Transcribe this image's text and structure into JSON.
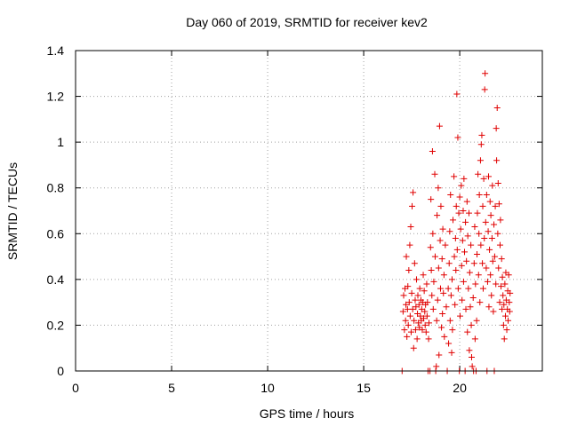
{
  "chart_data": {
    "type": "scatter",
    "title": "Day 060 of 2019, SRMTID for receiver kev2",
    "xlabel": "GPS time / hours",
    "ylabel": "SRMTID / TECUs",
    "xlim": [
      0,
      24.3
    ],
    "ylim": [
      0,
      1.4
    ],
    "xticks": [
      0,
      5,
      10,
      15,
      20
    ],
    "xtick_labels": [
      "0",
      "5",
      "10",
      "15",
      "20"
    ],
    "yticks": [
      0,
      0.2,
      0.4,
      0.6,
      0.8,
      1.0,
      1.2,
      1.4
    ],
    "ytick_labels": [
      "0",
      "0.2",
      "0.4",
      "0.6",
      "0.8",
      "1",
      "1.2",
      "1.4"
    ],
    "grid": true,
    "marker": "+",
    "color": "#e00000",
    "series": [
      {
        "name": "SRMTID",
        "points": [
          [
            17.0,
            0.0
          ],
          [
            17.05,
            0.26
          ],
          [
            17.08,
            0.33
          ],
          [
            17.12,
            0.18
          ],
          [
            17.15,
            0.36
          ],
          [
            17.18,
            0.22
          ],
          [
            17.2,
            0.29
          ],
          [
            17.22,
            0.5
          ],
          [
            17.25,
            0.15
          ],
          [
            17.28,
            0.27
          ],
          [
            17.3,
            0.37
          ],
          [
            17.32,
            0.2
          ],
          [
            17.35,
            0.44
          ],
          [
            17.37,
            0.3
          ],
          [
            17.4,
            0.55
          ],
          [
            17.42,
            0.24
          ],
          [
            17.45,
            0.63
          ],
          [
            17.47,
            0.17
          ],
          [
            17.5,
            0.34
          ],
          [
            17.52,
            0.72
          ],
          [
            17.55,
            0.27
          ],
          [
            17.57,
            0.78
          ],
          [
            17.6,
            0.1
          ],
          [
            17.62,
            0.22
          ],
          [
            17.65,
            0.47
          ],
          [
            17.68,
            0.31
          ],
          [
            17.7,
            0.18
          ],
          [
            17.72,
            0.28
          ],
          [
            17.75,
            0.4
          ],
          [
            17.78,
            0.14
          ],
          [
            17.8,
            0.25
          ],
          [
            17.82,
            0.33
          ],
          [
            17.85,
            0.21
          ],
          [
            17.88,
            0.29
          ],
          [
            17.9,
            0.19
          ],
          [
            17.92,
            0.36
          ],
          [
            17.95,
            0.24
          ],
          [
            17.98,
            0.31
          ],
          [
            18.0,
            0.22
          ],
          [
            18.02,
            0.27
          ],
          [
            18.05,
            0.18
          ],
          [
            18.08,
            0.3
          ],
          [
            18.1,
            0.42
          ],
          [
            18.12,
            0.23
          ],
          [
            18.15,
            0.35
          ],
          [
            18.18,
            0.26
          ],
          [
            18.2,
            0.2
          ],
          [
            18.22,
            0.29
          ],
          [
            18.25,
            0.17
          ],
          [
            18.28,
            0.38
          ],
          [
            18.3,
            0.24
          ],
          [
            18.32,
            0.3
          ],
          [
            18.35,
            0.0
          ],
          [
            18.38,
            0.14
          ],
          [
            18.4,
            0.21
          ],
          [
            18.45,
            0.0
          ],
          [
            18.48,
            0.54
          ],
          [
            18.5,
            0.75
          ],
          [
            18.52,
            0.44
          ],
          [
            18.55,
            0.33
          ],
          [
            18.58,
            0.96
          ],
          [
            18.6,
            0.6
          ],
          [
            18.62,
            0.27
          ],
          [
            18.65,
            0.39
          ],
          [
            18.7,
            0.86
          ],
          [
            18.72,
            0.5
          ],
          [
            18.75,
            0.0
          ],
          [
            18.78,
            0.02
          ],
          [
            18.8,
            0.22
          ],
          [
            18.82,
            0.68
          ],
          [
            18.85,
            0.31
          ],
          [
            18.88,
            0.8
          ],
          [
            18.9,
            0.45
          ],
          [
            18.92,
            0.07
          ],
          [
            18.95,
            1.07
          ],
          [
            18.98,
            0.57
          ],
          [
            19.0,
            0.36
          ],
          [
            19.02,
            0.72
          ],
          [
            19.05,
            0.19
          ],
          [
            19.08,
            0.49
          ],
          [
            19.1,
            0.25
          ],
          [
            19.12,
            0.62
          ],
          [
            19.15,
            0.34
          ],
          [
            19.18,
            0.42
          ],
          [
            19.2,
            0.15
          ],
          [
            19.25,
            0.55
          ],
          [
            19.3,
            0.28
          ],
          [
            19.35,
            0.0
          ],
          [
            19.4,
            0.36
          ],
          [
            19.42,
            0.12
          ],
          [
            19.45,
            0.47
          ],
          [
            19.48,
            0.61
          ],
          [
            19.5,
            0.22
          ],
          [
            19.52,
            0.77
          ],
          [
            19.55,
            0.33
          ],
          [
            19.58,
            0.08
          ],
          [
            19.6,
            0.4
          ],
          [
            19.62,
            0.18
          ],
          [
            19.65,
            0.66
          ],
          [
            19.7,
            0.85
          ],
          [
            19.72,
            0.5
          ],
          [
            19.75,
            0.29
          ],
          [
            19.78,
            0.58
          ],
          [
            19.8,
            0.44
          ],
          [
            19.82,
            0.72
          ],
          [
            19.85,
            1.21
          ],
          [
            19.87,
            0.53
          ],
          [
            19.9,
            1.02
          ],
          [
            19.92,
            0.36
          ],
          [
            19.95,
            0.69
          ],
          [
            19.98,
            0.0
          ],
          [
            20.0,
            0.76
          ],
          [
            20.02,
            0.24
          ],
          [
            20.05,
            0.62
          ],
          [
            20.08,
            0.81
          ],
          [
            20.1,
            0.46
          ],
          [
            20.12,
            0.31
          ],
          [
            20.15,
            0.57
          ],
          [
            20.18,
            0.7
          ],
          [
            20.2,
            0.39
          ],
          [
            20.22,
            0.84
          ],
          [
            20.25,
            0.52
          ],
          [
            20.28,
            0.0
          ],
          [
            20.3,
            0.65
          ],
          [
            20.32,
            0.27
          ],
          [
            20.35,
            0.48
          ],
          [
            20.38,
            0.74
          ],
          [
            20.4,
            0.17
          ],
          [
            20.42,
            0.59
          ],
          [
            20.45,
            0.36
          ],
          [
            20.48,
            0.69
          ],
          [
            20.5,
            0.09
          ],
          [
            20.52,
            0.43
          ],
          [
            20.55,
            0.28
          ],
          [
            20.58,
            0.55
          ],
          [
            20.6,
            0.2
          ],
          [
            20.62,
            0.06
          ],
          [
            20.65,
            0.02
          ],
          [
            20.7,
            0.32
          ],
          [
            20.72,
            0.0
          ],
          [
            20.75,
            0.47
          ],
          [
            20.78,
            0.63
          ],
          [
            20.8,
            0.14
          ],
          [
            20.82,
            0.38
          ],
          [
            20.85,
            0.0
          ],
          [
            20.88,
            0.22
          ],
          [
            20.9,
            0.51
          ],
          [
            20.92,
            0.69
          ],
          [
            20.95,
            0.86
          ],
          [
            20.98,
            0.42
          ],
          [
            21.0,
            0.6
          ],
          [
            21.02,
            0.77
          ],
          [
            21.05,
            0.3
          ],
          [
            21.08,
            0.92
          ],
          [
            21.1,
            0.55
          ],
          [
            21.12,
            0.99
          ],
          [
            21.15,
            1.03
          ],
          [
            21.18,
            0.47
          ],
          [
            21.2,
            0.72
          ],
          [
            21.22,
            0.36
          ],
          [
            21.25,
            0.84
          ],
          [
            21.28,
            0.58
          ],
          [
            21.3,
            1.23
          ],
          [
            21.32,
            1.3
          ],
          [
            21.35,
            0.65
          ],
          [
            21.38,
            0.45
          ],
          [
            21.4,
            0.77
          ],
          [
            21.42,
            0.0
          ],
          [
            21.45,
            0.39
          ],
          [
            21.48,
            0.61
          ],
          [
            21.5,
            0.85
          ],
          [
            21.52,
            0.28
          ],
          [
            21.55,
            0.53
          ],
          [
            21.58,
            0.74
          ],
          [
            21.6,
            0.42
          ],
          [
            21.62,
            0.68
          ],
          [
            21.65,
            0.33
          ],
          [
            21.68,
            0.58
          ],
          [
            21.7,
            0.81
          ],
          [
            21.72,
            0.48
          ],
          [
            21.75,
            0.26
          ],
          [
            21.78,
            0.64
          ],
          [
            21.8,
            0.0
          ],
          [
            21.82,
            0.5
          ],
          [
            21.85,
            0.72
          ],
          [
            21.88,
            0.38
          ],
          [
            21.9,
            1.06
          ],
          [
            21.92,
            0.92
          ],
          [
            21.95,
            1.15
          ],
          [
            21.98,
            0.6
          ],
          [
            22.0,
            0.82
          ],
          [
            22.02,
            0.45
          ],
          [
            22.05,
            0.73
          ],
          [
            22.08,
            0.3
          ],
          [
            22.1,
            0.55
          ],
          [
            22.12,
            0.66
          ],
          [
            22.15,
            0.37
          ],
          [
            22.18,
            0.49
          ],
          [
            22.2,
            0.27
          ],
          [
            22.22,
            0.41
          ],
          [
            22.25,
            0.33
          ],
          [
            22.28,
            0.2
          ],
          [
            22.3,
            0.29
          ],
          [
            22.32,
            0.14
          ],
          [
            22.35,
            0.38
          ],
          [
            22.38,
            0.24
          ],
          [
            22.4,
            0.43
          ],
          [
            22.42,
            0.31
          ],
          [
            22.45,
            0.18
          ],
          [
            22.48,
            0.27
          ],
          [
            22.5,
            0.35
          ],
          [
            22.52,
            0.22
          ],
          [
            22.55,
            0.42
          ],
          [
            22.58,
            0.3
          ],
          [
            22.6,
            0.26
          ],
          [
            22.62,
            0.34
          ]
        ]
      }
    ]
  }
}
